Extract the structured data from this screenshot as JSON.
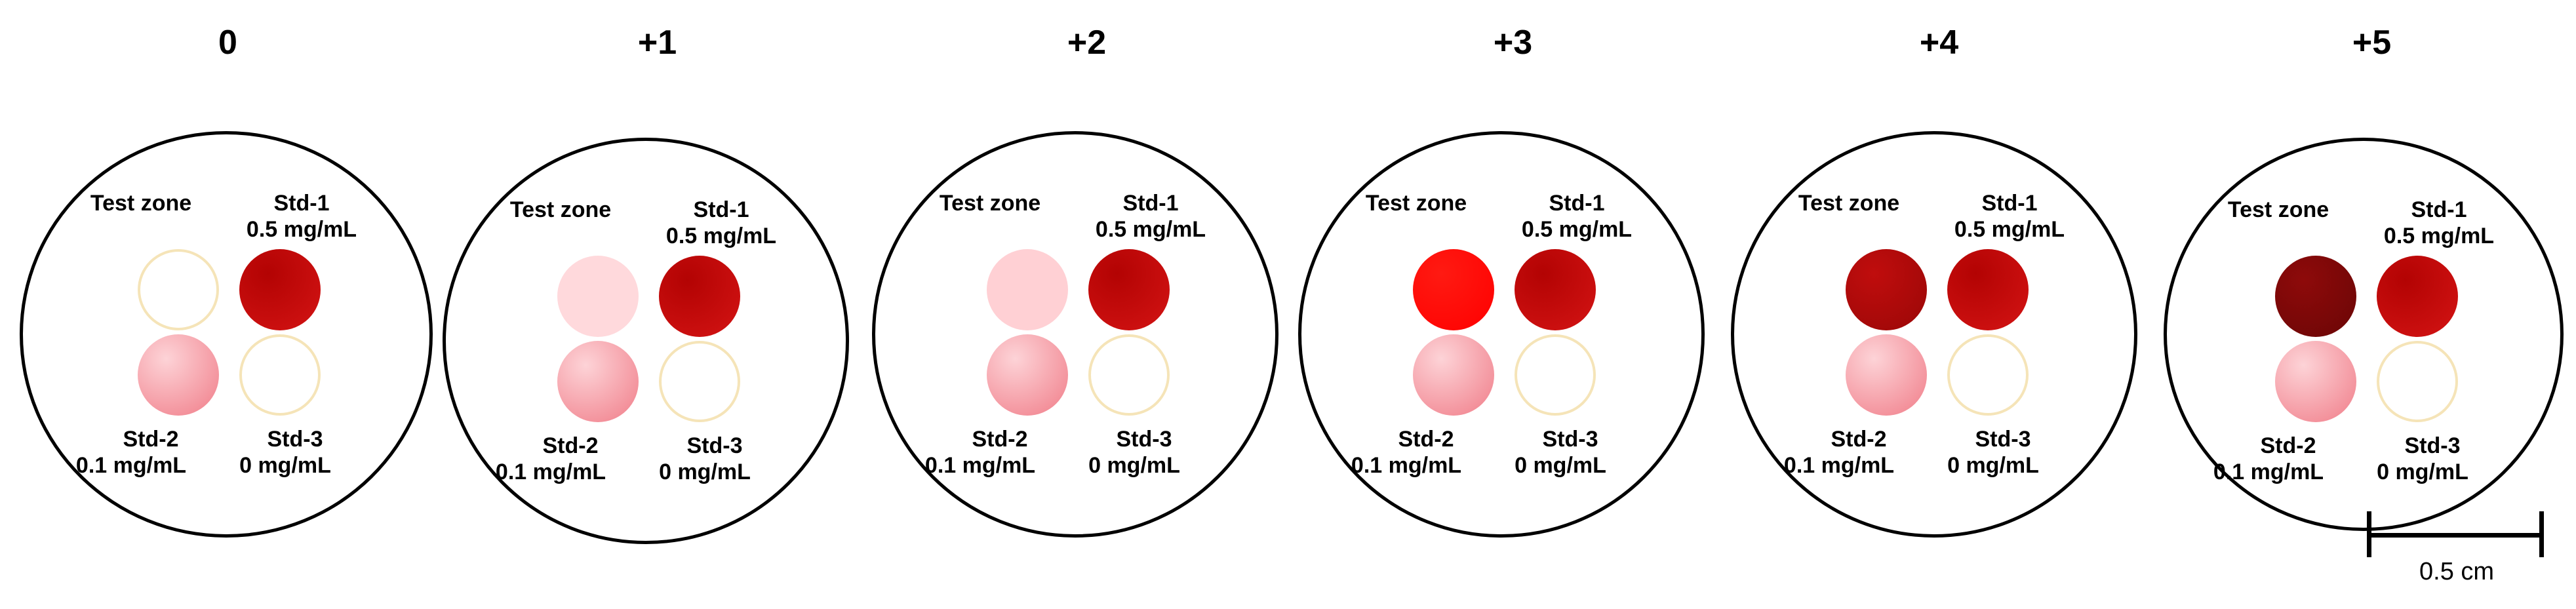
{
  "labels": {
    "test_zone": "Test zone",
    "std1": "Std-1",
    "std1_conc": "0.5 mg/mL",
    "std2": "Std-2",
    "std2_conc": "0.1 mg/mL",
    "std3": "Std-3",
    "std3_conc": "0 mg/mL"
  },
  "panels": [
    {
      "grade": "0",
      "test_color": "none"
    },
    {
      "grade": "+1",
      "test_color": "very-light-pink"
    },
    {
      "grade": "+2",
      "test_color": "light-pink"
    },
    {
      "grade": "+3",
      "test_color": "bright-red"
    },
    {
      "grade": "+4",
      "test_color": "dark-red"
    },
    {
      "grade": "+5",
      "test_color": "very-dark-red"
    }
  ],
  "colors": {
    "none": "#ffffff",
    "very-light-pink": "#ffd9dc",
    "light-pink": "#ffd0d4",
    "bright-red": "#ff1a12",
    "dark-red": "#c00d0d",
    "very-dark-red": "#8e0a0a",
    "std1": "#c20b0b",
    "std2": "#f48a94",
    "outline": "#f5e4b8"
  },
  "scale_bar": {
    "label": "0.5 cm"
  }
}
